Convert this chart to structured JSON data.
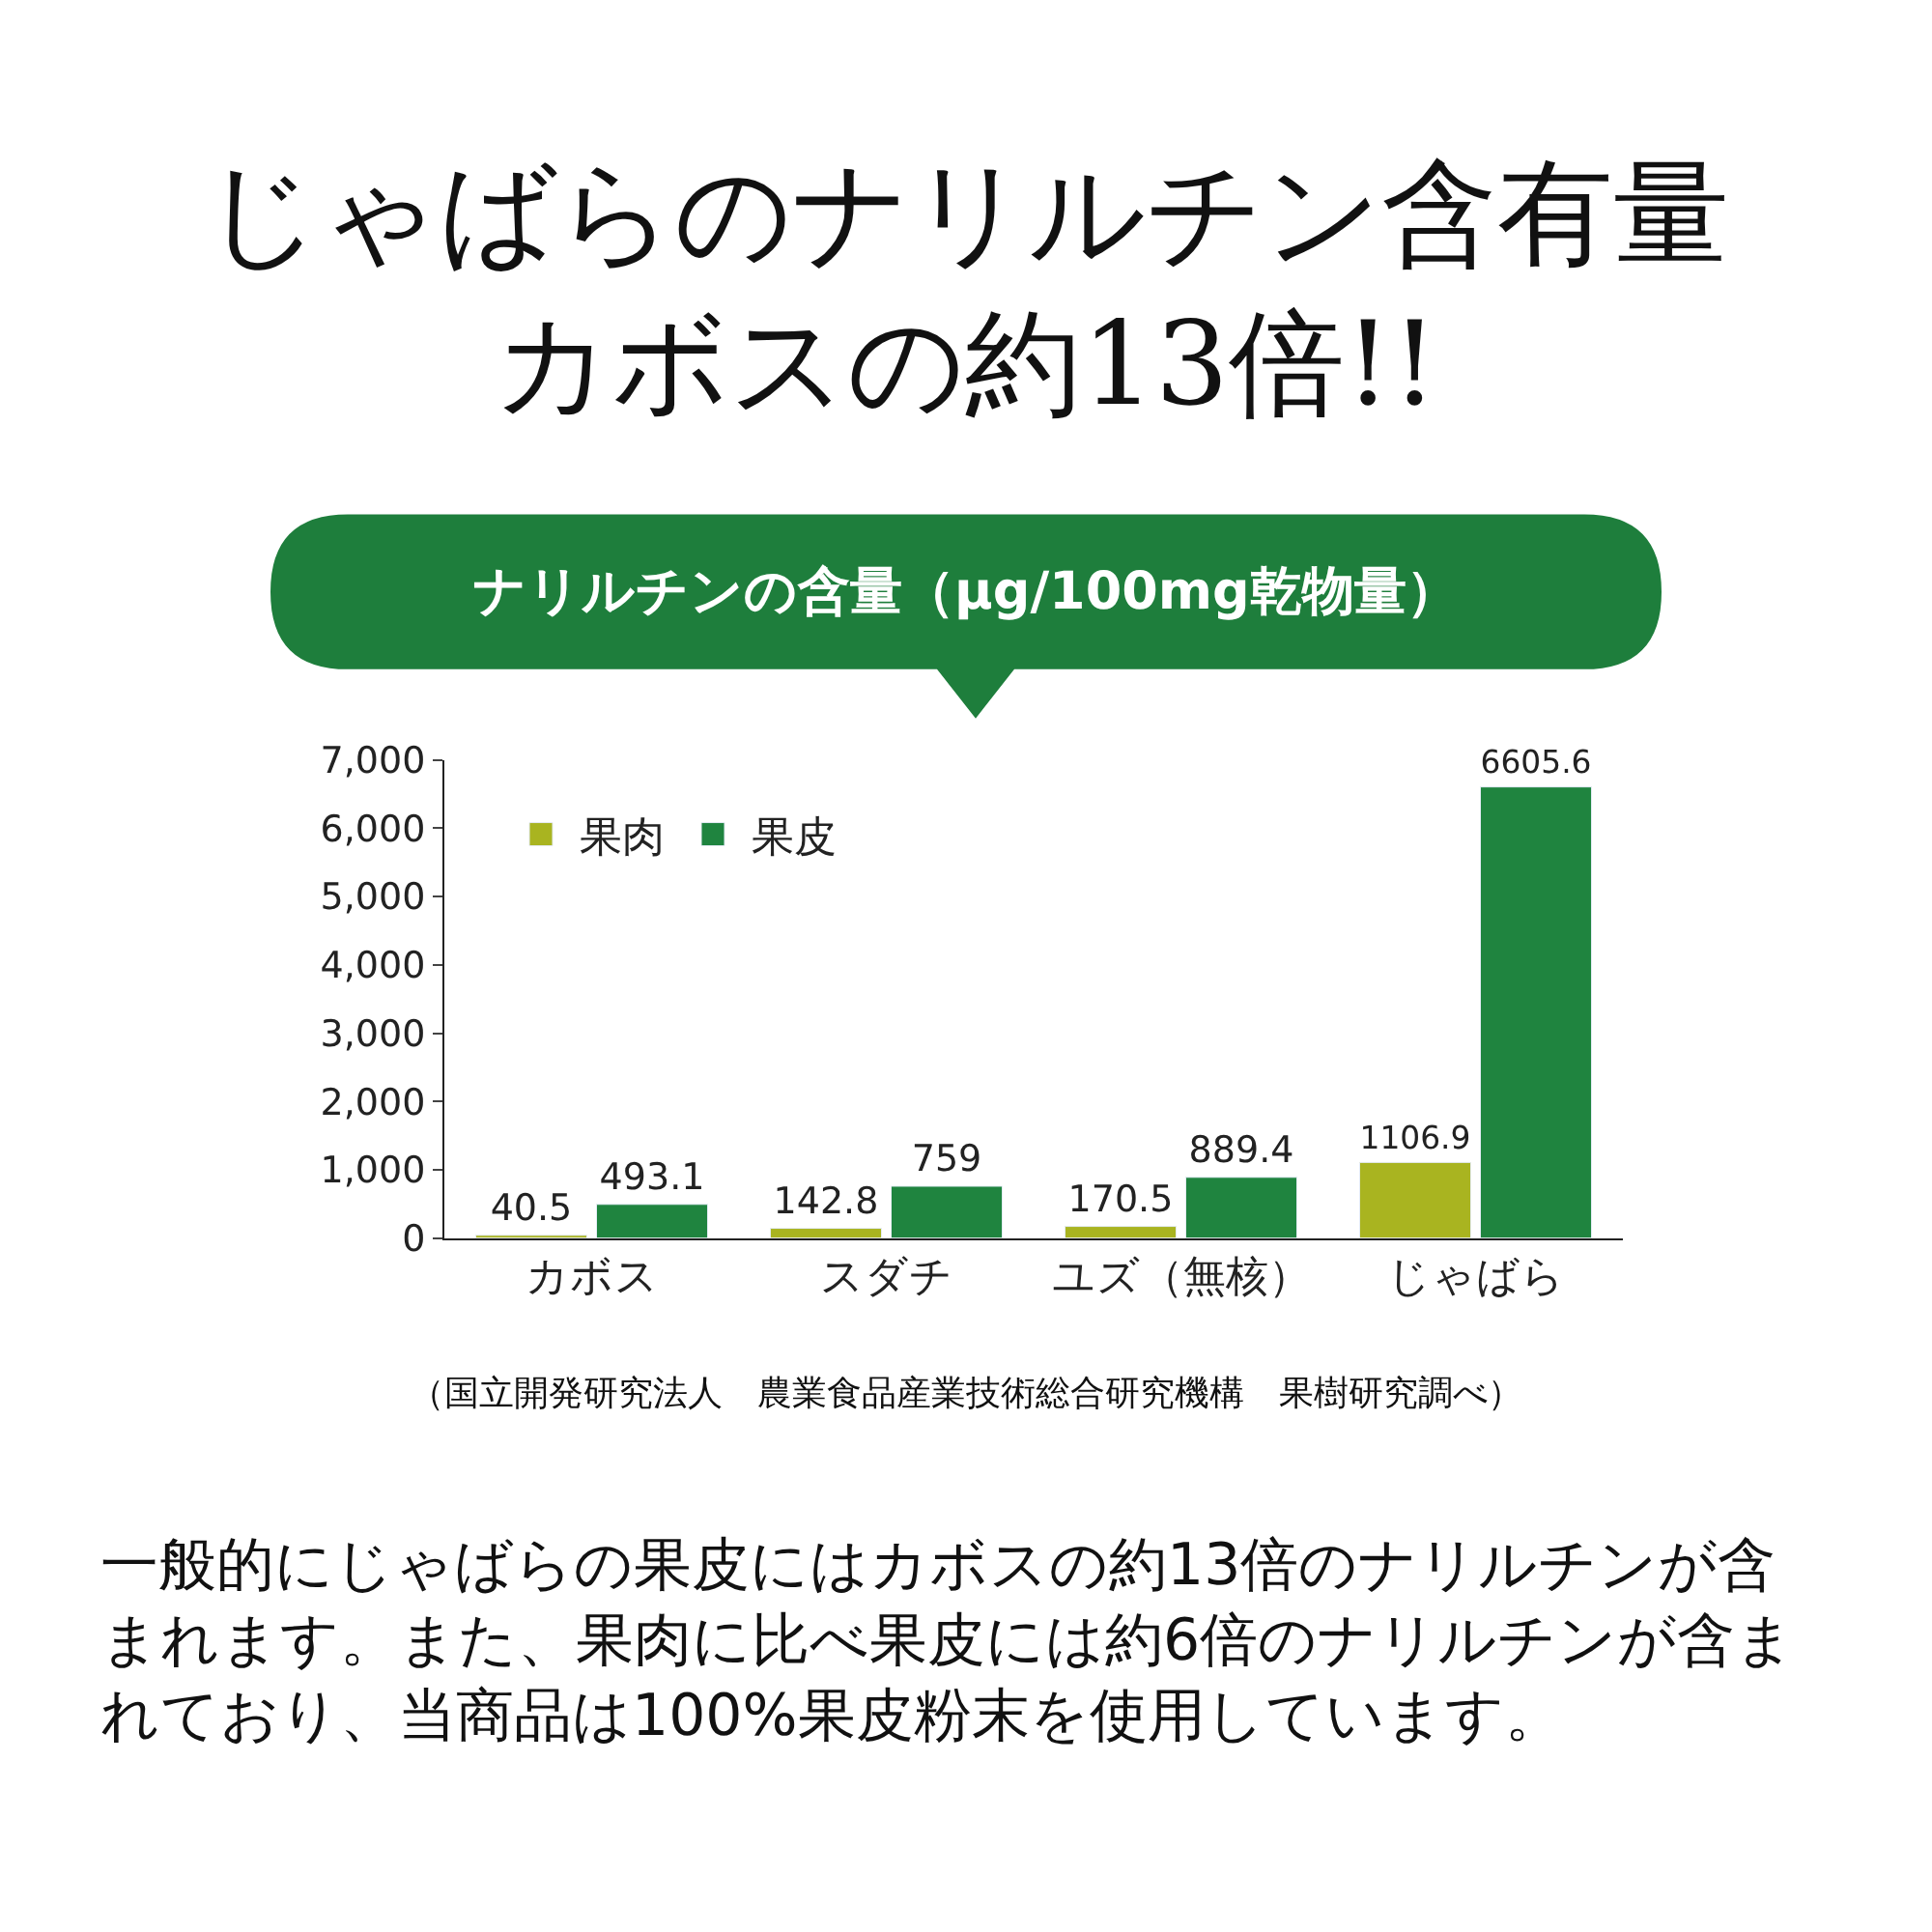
{
  "chart_data": {
    "type": "bar",
    "title": "じゃばらのナリルチン含有量カボスの約13倍!!",
    "subtitle": "ナリルチンの含量（μg/100mg乾物量）",
    "categories": [
      "カボス",
      "スダチ",
      "ユズ（無核）",
      "じゃばら"
    ],
    "series": [
      {
        "name": "果肉",
        "color": "#a9b420",
        "values": [
          40.5,
          142.8,
          170.5,
          1106.9
        ]
      },
      {
        "name": "果皮",
        "color": "#1f843f",
        "values": [
          493.1,
          759,
          889.4,
          6605.6
        ]
      }
    ],
    "ylim": [
      0,
      7000
    ],
    "yticks": [
      {
        "value": 0,
        "label": "0"
      },
      {
        "value": 1000,
        "label": "1,000"
      },
      {
        "value": 2000,
        "label": "2,000"
      },
      {
        "value": 3000,
        "label": "3,000"
      },
      {
        "value": 4000,
        "label": "4,000"
      },
      {
        "value": 5000,
        "label": "5,000"
      },
      {
        "value": 6000,
        "label": "6,000"
      },
      {
        "value": 7000,
        "label": "7,000"
      }
    ],
    "data_labels": true,
    "legend": "top left",
    "annotations": [
      "（国立開発研究法人　農業食品産業技術総合研究機構　果樹研究調べ）",
      "一般的にじゃばらの果皮にはカボスの約13倍のナリルチンが含まれます。また、果肉に比べ果皮には約6倍のナリルチンが含まれており、当商品は100%果皮粉末を使用しています。"
    ]
  }
}
